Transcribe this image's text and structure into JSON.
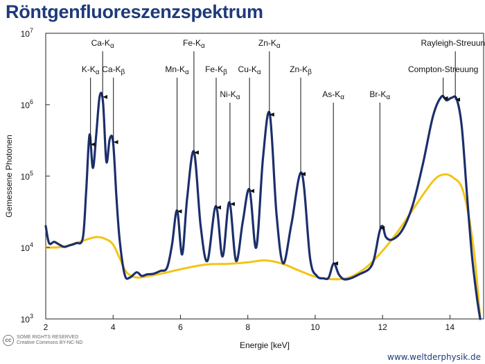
{
  "title": "Röntgenfluoreszenzspektrum",
  "chart_data": {
    "type": "line",
    "xlabel": "Energie [keV]",
    "ylabel": "Gemessene Photonen",
    "xlim": [
      2,
      15
    ],
    "ylim": [
      1000,
      10000000
    ],
    "yscale": "log",
    "x_ticks": [
      {
        "value": 2,
        "label": "2"
      },
      {
        "value": 4,
        "label": "4"
      },
      {
        "value": 6,
        "label": "6"
      },
      {
        "value": 8,
        "label": "8"
      },
      {
        "value": 10,
        "label": "10"
      },
      {
        "value": 12,
        "label": "12"
      },
      {
        "value": 14,
        "label": "14"
      }
    ],
    "y_ticks": [
      {
        "value": 1000,
        "base": "10",
        "exp": "3"
      },
      {
        "value": 10000,
        "base": "10",
        "exp": "4"
      },
      {
        "value": 100000,
        "base": "10",
        "exp": "5"
      },
      {
        "value": 1000000,
        "base": "10",
        "exp": "6"
      },
      {
        "value": 10000000,
        "base": "10",
        "exp": "7"
      }
    ],
    "series": [
      {
        "color": "#1c2f6b",
        "x": [
          2.0,
          2.1,
          2.25,
          2.4,
          2.55,
          2.7,
          2.9,
          3.1,
          3.2,
          3.3,
          3.4,
          3.5,
          3.6,
          3.7,
          3.8,
          3.9,
          4.0,
          4.1,
          4.2,
          4.35,
          4.5,
          4.7,
          4.85,
          5.0,
          5.2,
          5.4,
          5.6,
          5.75,
          5.9,
          6.05,
          6.2,
          6.4,
          6.6,
          6.8,
          7.05,
          7.25,
          7.45,
          7.65,
          7.85,
          8.05,
          8.25,
          8.45,
          8.65,
          8.85,
          9.05,
          9.3,
          9.6,
          9.85,
          10.05,
          10.25,
          10.4,
          10.55,
          10.7,
          10.85,
          11.05,
          11.3,
          11.6,
          11.75,
          11.9,
          12.0,
          12.1,
          12.3,
          12.6,
          12.9,
          13.2,
          13.5,
          13.75,
          13.9,
          14.05,
          14.2,
          14.35,
          14.5,
          14.65,
          14.8,
          14.9
        ],
        "y": [
          20000,
          11500,
          12000,
          11000,
          10200,
          10700,
          11500,
          13500,
          60000,
          380000,
          130000,
          380000,
          1300000,
          1100000,
          160000,
          330000,
          300000,
          50000,
          12000,
          4100,
          3800,
          4500,
          4000,
          4200,
          4300,
          4700,
          5200,
          11000,
          33000,
          8000,
          50000,
          220000,
          20000,
          6500,
          38000,
          7500,
          43000,
          6500,
          23000,
          65000,
          10000,
          180000,
          750000,
          30000,
          6000,
          22000,
          110000,
          7000,
          4000,
          3700,
          3800,
          6000,
          4200,
          3600,
          3700,
          4200,
          5000,
          7000,
          16000,
          20000,
          14000,
          13000,
          18000,
          40000,
          150000,
          700000,
          1300000,
          1150000,
          1250000,
          1200000,
          500000,
          60000,
          8000,
          2000,
          1000
        ]
      },
      {
        "color": "#f3c413",
        "x": [
          2.0,
          2.5,
          3.0,
          3.5,
          3.8,
          4.0,
          4.2,
          4.4,
          4.7,
          5.2,
          5.7,
          6.2,
          6.8,
          7.4,
          8.0,
          8.5,
          9.0,
          9.5,
          10.0,
          10.5,
          11.0,
          11.5,
          12.0,
          12.5,
          13.0,
          13.5,
          13.8,
          14.1,
          14.4,
          14.7,
          14.9
        ],
        "y": [
          10000,
          10200,
          12000,
          14000,
          13000,
          11000,
          7000,
          4500,
          3800,
          4100,
          4600,
          5200,
          5800,
          5900,
          6200,
          6600,
          6000,
          4800,
          3900,
          3600,
          3800,
          5200,
          9000,
          18000,
          40000,
          85000,
          105000,
          95000,
          60000,
          10000,
          1000
        ]
      }
    ],
    "annotations": [
      {
        "main": "K-K",
        "sub": "α",
        "tip": [
          3.33,
          260000
        ],
        "text_row": 2
      },
      {
        "main": "Ca-K",
        "sub": "α",
        "tip": [
          3.69,
          1200000
        ],
        "text_row": 1
      },
      {
        "main": "Ca-K",
        "sub": "β",
        "tip": [
          4.01,
          280000
        ],
        "text_row": 2
      },
      {
        "main": "Mn-K",
        "sub": "α",
        "tip": [
          5.9,
          30000
        ],
        "text_row": 2
      },
      {
        "main": "Fe-K",
        "sub": "α",
        "tip": [
          6.4,
          200000
        ],
        "text_row": 1
      },
      {
        "main": "Fe-K",
        "sub": "β",
        "tip": [
          7.06,
          34000
        ],
        "text_row": 2
      },
      {
        "main": "Ni-K",
        "sub": "α",
        "tip": [
          7.47,
          38000
        ],
        "text_row": 3
      },
      {
        "main": "Cu-K",
        "sub": "α",
        "tip": [
          8.05,
          58000
        ],
        "text_row": 2
      },
      {
        "main": "Zn-K",
        "sub": "α",
        "tip": [
          8.64,
          680000
        ],
        "text_row": 1
      },
      {
        "main": "Zn-K",
        "sub": "β",
        "tip": [
          9.57,
          100000
        ],
        "text_row": 2
      },
      {
        "main": "As-K",
        "sub": "α",
        "tip": [
          10.54,
          5600
        ],
        "text_row": 3
      },
      {
        "main": "Br-K",
        "sub": "α",
        "tip": [
          11.92,
          17500
        ],
        "text_row": 3
      },
      {
        "main": "Compton-Streuung",
        "sub": "",
        "tip": [
          13.8,
          1150000
        ],
        "text_row": 2
      },
      {
        "main": "Rayleigh-Streuung",
        "sub": "",
        "tip": [
          14.16,
          1100000
        ],
        "text_row": 1
      }
    ]
  },
  "footer": {
    "cc_badge": "cc",
    "license_line1": "SOME RIGHTS RESERVED",
    "license_line2": "Creative Commons BY-NC-ND",
    "website": "www.weltderphysik.de"
  }
}
